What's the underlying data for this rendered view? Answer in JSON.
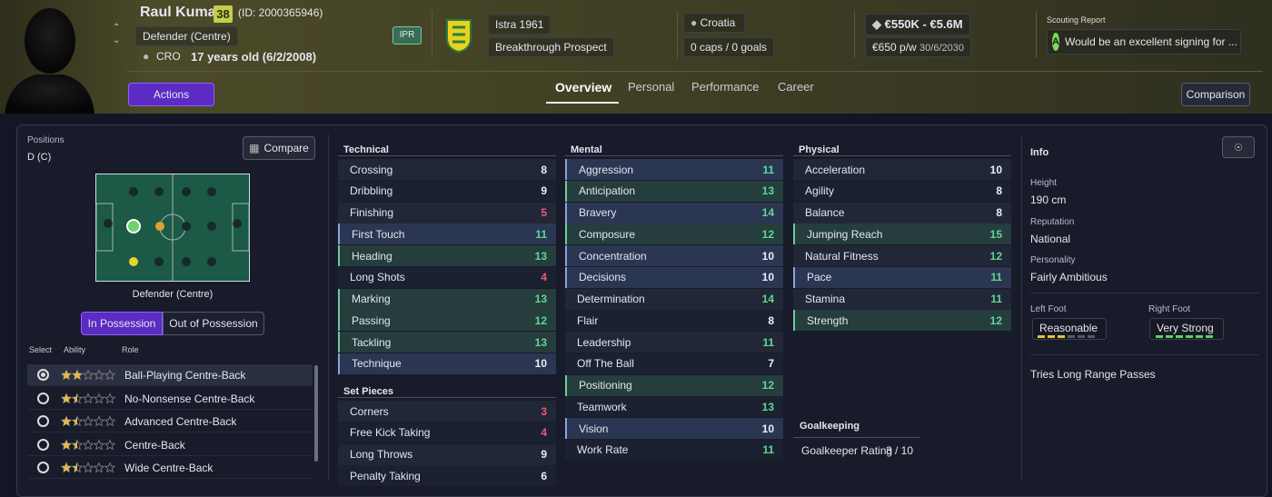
{
  "header": {
    "name": "Raul Kumar",
    "ability": "38",
    "id": "(ID: 2000365946)",
    "position": "Defender (Centre)",
    "nation": "CRO",
    "age": "17 years old (6/2/2008)",
    "ipr": "IPR",
    "club": "Istra 1961",
    "status": "Breakthrough Prospect",
    "country": "Croatia",
    "caps": "0 caps / 0 goals",
    "value": "€550K - €5.6M",
    "wage": "€650 p/w",
    "contract": "30/6/2030",
    "scouting_title": "Scouting Report",
    "scouting_grade": "A",
    "scouting_text": "Would be an excellent signing for ...",
    "actions": "Actions",
    "comparison": "Comparison"
  },
  "tabs": [
    "Overview",
    "Personal",
    "Performance",
    "Career"
  ],
  "positions": {
    "title": "Positions",
    "value": "D (C)",
    "compare": "Compare",
    "pitch_label": "Defender (Centre)",
    "toggle": [
      "In Possession",
      "Out of Possession"
    ],
    "columns": [
      "Select",
      "Ability",
      "Role"
    ],
    "roles": [
      {
        "name": "Ball-Playing Centre-Back",
        "stars": 2
      },
      {
        "name": "No-Nonsense Centre-Back",
        "stars": 1.5
      },
      {
        "name": "Advanced Centre-Back",
        "stars": 1.5
      },
      {
        "name": "Centre-Back",
        "stars": 1.5
      },
      {
        "name": "Wide Centre-Back",
        "stars": 1.5
      }
    ]
  },
  "technical": {
    "title": "Technical",
    "items": [
      {
        "name": "Crossing",
        "value": 8
      },
      {
        "name": "Dribbling",
        "value": 9
      },
      {
        "name": "Finishing",
        "value": 5
      },
      {
        "name": "First Touch",
        "value": 11
      },
      {
        "name": "Heading",
        "value": 13
      },
      {
        "name": "Long Shots",
        "value": 4
      },
      {
        "name": "Marking",
        "value": 13
      },
      {
        "name": "Passing",
        "value": 12
      },
      {
        "name": "Tackling",
        "value": 13
      },
      {
        "name": "Technique",
        "value": 10
      }
    ]
  },
  "set_pieces": {
    "title": "Set Pieces",
    "items": [
      {
        "name": "Corners",
        "value": 3
      },
      {
        "name": "Free Kick Taking",
        "value": 4
      },
      {
        "name": "Long Throws",
        "value": 9
      },
      {
        "name": "Penalty Taking",
        "value": 6
      }
    ]
  },
  "mental": {
    "title": "Mental",
    "items": [
      {
        "name": "Aggression",
        "value": 11
      },
      {
        "name": "Anticipation",
        "value": 13
      },
      {
        "name": "Bravery",
        "value": 14
      },
      {
        "name": "Composure",
        "value": 12
      },
      {
        "name": "Concentration",
        "value": 10
      },
      {
        "name": "Decisions",
        "value": 10
      },
      {
        "name": "Determination",
        "value": 14
      },
      {
        "name": "Flair",
        "value": 8
      },
      {
        "name": "Leadership",
        "value": 11
      },
      {
        "name": "Off The Ball",
        "value": 7
      },
      {
        "name": "Positioning",
        "value": 12
      },
      {
        "name": "Teamwork",
        "value": 13
      },
      {
        "name": "Vision",
        "value": 10
      },
      {
        "name": "Work Rate",
        "value": 11
      }
    ]
  },
  "physical": {
    "title": "Physical",
    "items": [
      {
        "name": "Acceleration",
        "value": 10
      },
      {
        "name": "Agility",
        "value": 8
      },
      {
        "name": "Balance",
        "value": 8
      },
      {
        "name": "Jumping Reach",
        "value": 15
      },
      {
        "name": "Natural Fitness",
        "value": 12
      },
      {
        "name": "Pace",
        "value": 11
      },
      {
        "name": "Stamina",
        "value": 11
      },
      {
        "name": "Strength",
        "value": 12
      }
    ]
  },
  "goalkeeping": {
    "title": "Goalkeeping",
    "label": "Goalkeeper Rating",
    "value": "3 / 10"
  },
  "info": {
    "title": "Info",
    "height_label": "Height",
    "height": "190 cm",
    "reputation_label": "Reputation",
    "reputation": "National",
    "personality_label": "Personality",
    "personality": "Fairly Ambitious",
    "left_foot": {
      "label": "Left Foot",
      "rating": "Reasonable",
      "level": 3
    },
    "right_foot": {
      "label": "Right Foot",
      "rating": "Very Strong",
      "level": 6
    },
    "trait": "Tries Long Range Passes"
  }
}
